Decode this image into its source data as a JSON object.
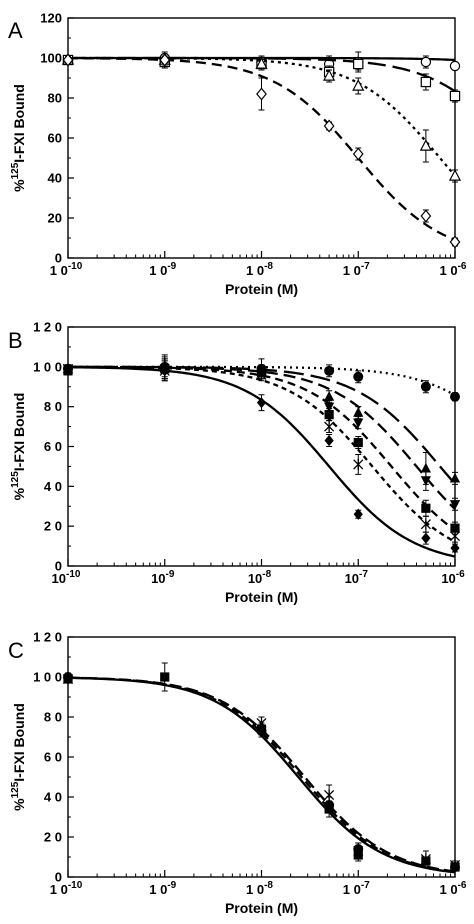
{
  "chart_data": [
    {
      "type": "scatter",
      "panel_label": "A",
      "xlabel": "Protein (M)",
      "ylabel": "%125I-FXI Bound",
      "ylabel_parts": [
        "%",
        "125",
        "I-FXI Bound"
      ],
      "xscale": "log",
      "xlim": [
        1e-10,
        1e-06
      ],
      "ylim": [
        0,
        120
      ],
      "x_ticks": [
        {
          "base": "1 0",
          "exp": "-10",
          "value": 1e-10
        },
        {
          "base": "1 0",
          "exp": "-9",
          "value": 1e-09
        },
        {
          "base": "1 0",
          "exp": "-8",
          "value": 1e-08
        },
        {
          "base": "1 0",
          "exp": "-7",
          "value": 1e-07
        },
        {
          "base": "1 0",
          "exp": "-6",
          "value": 1e-06
        }
      ],
      "y_ticks": [
        "0",
        "20",
        "40",
        "60",
        "80",
        "100",
        "120"
      ],
      "grid": false,
      "series": [
        {
          "marker": "open-circle",
          "line": "solid",
          "x": [
            1e-10,
            1e-09,
            1e-08,
            5e-08,
            1e-07,
            5e-07,
            1e-06
          ],
          "y": [
            99,
            100,
            98,
            97,
            98,
            98,
            96
          ],
          "err": [
            2,
            3,
            3,
            4,
            5,
            3,
            2
          ],
          "fit": {
            "ic50": 0.0001,
            "dash": "none"
          }
        },
        {
          "marker": "open-square",
          "line": "long-dash",
          "x": [
            1e-10,
            1e-09,
            1e-08,
            5e-08,
            1e-07,
            5e-07,
            1e-06
          ],
          "y": [
            99,
            98,
            97,
            93,
            97,
            88,
            81
          ],
          "err": [
            2,
            3,
            3,
            3,
            3,
            4,
            3
          ],
          "fit": {
            "ic50": 5e-06,
            "dash": "18,7"
          }
        },
        {
          "marker": "open-triangle",
          "line": "dotted",
          "x": [
            1e-10,
            1e-09,
            1e-08,
            5e-08,
            1e-07,
            5e-07,
            1e-06
          ],
          "y": [
            99,
            99,
            97,
            91,
            86,
            56,
            41
          ],
          "err": [
            2,
            3,
            3,
            3,
            4,
            8,
            3
          ],
          "fit": {
            "ic50": 7e-07,
            "dash": "3,4"
          }
        },
        {
          "marker": "open-diamond",
          "line": "dashed",
          "x": [
            1e-10,
            1e-09,
            1e-08,
            5e-08,
            1e-07,
            5e-07,
            1e-06
          ],
          "y": [
            99,
            99,
            82,
            66,
            52,
            21,
            8
          ],
          "err": [
            2,
            3,
            8,
            2,
            3,
            3,
            2
          ],
          "fit": {
            "ic50": 1e-07,
            "dash": "10,6"
          }
        }
      ]
    },
    {
      "type": "scatter",
      "panel_label": "B",
      "xlabel": "Protein (M)",
      "ylabel": "%125I-FXI Bound",
      "ylabel_parts": [
        "%",
        "125",
        "I-FXI Bound"
      ],
      "xscale": "log",
      "xlim": [
        1e-10,
        1e-06
      ],
      "ylim": [
        0,
        120
      ],
      "x_ticks": [
        {
          "base": "10",
          "exp": "-10",
          "value": 1e-10
        },
        {
          "base": "10",
          "exp": "-9",
          "value": 1e-09
        },
        {
          "base": "10",
          "exp": "-8",
          "value": 1e-08
        },
        {
          "base": "10",
          "exp": "-7",
          "value": 1e-07
        },
        {
          "base": "10",
          "exp": "-6",
          "value": 1e-06
        }
      ],
      "y_ticks": [
        "0",
        "2 0",
        "4 0",
        "6 0",
        "8 0",
        "1 0 0",
        "1 2 0"
      ],
      "grid": false,
      "series": [
        {
          "marker": "filled-circle",
          "line": "dotted",
          "x": [
            1e-10,
            1e-09,
            1e-08,
            5e-08,
            1e-07,
            5e-07,
            1e-06
          ],
          "y": [
            99,
            100,
            99,
            98,
            95,
            90,
            85
          ],
          "err": [
            2,
            6,
            5,
            3,
            3,
            3,
            2
          ],
          "fit": {
            "ic50": 6e-06,
            "dash": "2,4"
          }
        },
        {
          "marker": "filled-triangle-up",
          "line": "long-dash",
          "x": [
            1e-10,
            1e-09,
            1e-08,
            5e-08,
            1e-07,
            5e-07,
            1e-06
          ],
          "y": [
            99,
            100,
            98,
            85,
            77,
            49,
            44
          ],
          "err": [
            2,
            5,
            3,
            3,
            3,
            8,
            3
          ],
          "fit": {
            "ic50": 7e-07,
            "dash": "20,7"
          }
        },
        {
          "marker": "filled-triangle-down",
          "line": "dashed",
          "x": [
            1e-10,
            1e-09,
            1e-08,
            5e-08,
            1e-07,
            5e-07,
            1e-06
          ],
          "y": [
            99,
            99,
            98,
            80,
            72,
            43,
            31
          ],
          "err": [
            2,
            5,
            3,
            3,
            3,
            5,
            3
          ],
          "fit": {
            "ic50": 4e-07,
            "dash": "12,6"
          }
        },
        {
          "marker": "filled-square",
          "line": "dashed",
          "x": [
            1e-10,
            1e-09,
            1e-08,
            5e-08,
            1e-07,
            5e-07,
            1e-06
          ],
          "y": [
            98,
            99,
            97,
            76,
            62,
            29,
            19
          ],
          "err": [
            2,
            5,
            3,
            3,
            3,
            4,
            3
          ],
          "fit": {
            "ic50": 2.2e-07,
            "dash": "8,5"
          }
        },
        {
          "marker": "asterisk",
          "line": "dash-dot",
          "x": [
            1e-10,
            1e-09,
            1e-08,
            5e-08,
            1e-07,
            5e-07,
            1e-06
          ],
          "y": [
            99,
            98,
            96,
            70,
            51,
            21,
            15
          ],
          "err": [
            2,
            5,
            3,
            3,
            5,
            4,
            3
          ],
          "fit": {
            "ic50": 1.4e-07,
            "dash": "5,4"
          }
        },
        {
          "marker": "filled-diamond",
          "line": "solid",
          "x": [
            1e-10,
            1e-09,
            1e-08,
            5e-08,
            1e-07,
            5e-07,
            1e-06
          ],
          "y": [
            98,
            98,
            82,
            63,
            26,
            14,
            9
          ],
          "err": [
            2,
            5,
            4,
            3,
            2,
            3,
            2
          ],
          "fit": {
            "ic50": 5e-08,
            "dash": "none"
          }
        }
      ]
    },
    {
      "type": "scatter",
      "panel_label": "C",
      "xlabel": "Protein (M)",
      "ylabel": "%125I-FXI Bound",
      "ylabel_parts": [
        "%",
        "125",
        "I-FXI Bound"
      ],
      "xscale": "log",
      "xlim": [
        1e-10,
        1e-06
      ],
      "ylim": [
        0,
        120
      ],
      "x_ticks": [
        {
          "base": "1 0",
          "exp": "-10",
          "value": 1e-10
        },
        {
          "base": "1 0",
          "exp": "-9",
          "value": 1e-09
        },
        {
          "base": "1 0",
          "exp": "-8",
          "value": 1e-08
        },
        {
          "base": "1 0",
          "exp": "-7",
          "value": 1e-07
        },
        {
          "base": "1 0",
          "exp": "-6",
          "value": 1e-06
        }
      ],
      "y_ticks": [
        "0",
        "2 0",
        "4 0",
        "6 0",
        "8 0",
        "1 0 0",
        "1 2 0"
      ],
      "grid": false,
      "series": [
        {
          "marker": "filled-circle",
          "line": "solid",
          "x": [
            1e-10,
            1e-08,
            5e-08,
            1e-07,
            1e-06
          ],
          "y": [
            100,
            73,
            36,
            14,
            5
          ],
          "err": [
            2,
            3,
            4,
            3,
            2
          ],
          "fit": {
            "ic50": 2.4e-08,
            "dash": "none"
          }
        },
        {
          "marker": "filled-square",
          "line": "dashed",
          "x": [
            1e-10,
            1e-09,
            1e-08,
            5e-08,
            1e-07,
            5e-07,
            1e-06
          ],
          "y": [
            99,
            100,
            74,
            34,
            11,
            8,
            5
          ],
          "err": [
            2,
            7,
            3,
            4,
            3,
            2,
            2
          ],
          "fit": {
            "ic50": 2.6e-08,
            "dash": "8,5"
          }
        },
        {
          "marker": "asterisk",
          "line": "dashed",
          "x": [
            1e-10,
            1e-08,
            5e-08,
            1e-07,
            5e-07,
            1e-06
          ],
          "y": [
            99,
            77,
            41,
            13,
            9,
            6
          ],
          "err": [
            2,
            3,
            5,
            4,
            4,
            2
          ],
          "fit": {
            "ic50": 2.8e-08,
            "dash": "12,5"
          }
        }
      ]
    }
  ]
}
